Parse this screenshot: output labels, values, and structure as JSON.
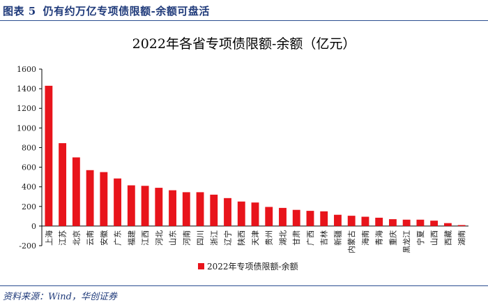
{
  "figure": {
    "label": "图表 5",
    "caption": "仍有约万亿专项债限额-余额可盘活",
    "source": "资料来源：Wind，华创证券"
  },
  "colors": {
    "bar": "#e8141b",
    "accent": "#1f3a7a",
    "axis": "#000000"
  },
  "chart_data": {
    "type": "bar",
    "title": "2022年各省专项债限额-余额（亿元）",
    "xlabel": "",
    "ylabel": "",
    "ylim": [
      -200,
      1600
    ],
    "yticks": [
      -200,
      0,
      200,
      400,
      600,
      800,
      1000,
      1200,
      1400,
      1600
    ],
    "grid": false,
    "legend_position": "bottom-center",
    "categories": [
      "上海",
      "江苏",
      "北京",
      "云南",
      "安徽",
      "广东",
      "福建",
      "江西",
      "河北",
      "山东",
      "河南",
      "四川",
      "浙江",
      "辽宁",
      "陕西",
      "天津",
      "贵州",
      "湖北",
      "甘肃",
      "广西",
      "吉林",
      "新疆",
      "内蒙古",
      "海南",
      "青海",
      "重庆",
      "黑龙江",
      "宁夏",
      "山西",
      "西藏",
      "湖南"
    ],
    "series": [
      {
        "name": "2022年专项债限额-余额",
        "values": [
          1430,
          845,
          700,
          570,
          550,
          485,
          415,
          410,
          390,
          365,
          345,
          345,
          320,
          285,
          250,
          240,
          195,
          185,
          165,
          155,
          150,
          115,
          105,
          95,
          85,
          70,
          65,
          65,
          55,
          30,
          10
        ]
      }
    ]
  }
}
